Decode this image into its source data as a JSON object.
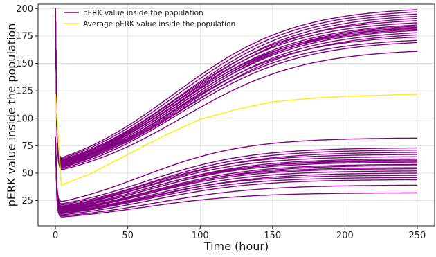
{
  "chart_data": {
    "type": "line",
    "xlabel": "Time (hour)",
    "ylabel": "pERK value inside the population",
    "xlim": [
      -12,
      262
    ],
    "ylim": [
      2,
      204
    ],
    "xticks": [
      0,
      50,
      100,
      150,
      200,
      250
    ],
    "yticks": [
      25,
      50,
      75,
      100,
      125,
      150,
      175,
      200
    ],
    "grid": true,
    "legend_position": "top-left",
    "colors": {
      "population": "#800080",
      "average": "#f7f023"
    },
    "legend": [
      {
        "label": "pERK value inside the population",
        "color": "#800080"
      },
      {
        "label": "Average pERK value inside the population",
        "color": "#f7f023"
      }
    ],
    "series": [
      {
        "name": "pERK value inside the population",
        "group": "high",
        "start": 200,
        "min_values": [
          64,
          63,
          62,
          61.5,
          61,
          60.5,
          60,
          59.5,
          59,
          58.5,
          58,
          57.5,
          57,
          56.5,
          56,
          55.5,
          55,
          54,
          53
        ],
        "final_values": [
          199,
          197,
          195,
          193,
          191,
          189,
          187,
          185,
          184,
          183,
          182,
          181,
          180,
          178,
          176,
          174,
          171,
          169,
          161
        ]
      },
      {
        "name": "pERK value inside the population",
        "group": "low",
        "start": 83,
        "min_values": [
          24,
          22,
          21,
          20,
          19.5,
          19,
          18.5,
          18,
          17.5,
          17,
          16.5,
          16,
          15.5,
          15,
          14.5,
          14,
          13.5,
          13,
          12,
          11,
          10
        ],
        "final_values": [
          82,
          73,
          71,
          69,
          67,
          65,
          63,
          62,
          61,
          60,
          58,
          57,
          55,
          54,
          52,
          50,
          48,
          46,
          44,
          39,
          32
        ]
      },
      {
        "name": "Average pERK value inside the population",
        "group": "average",
        "x": [
          0,
          4,
          25,
          50,
          75,
          100,
          125,
          150,
          175,
          200,
          225,
          250
        ],
        "y": [
          122,
          39,
          50,
          67,
          84,
          99,
          108,
          115,
          118,
          120,
          121,
          122
        ]
      }
    ]
  }
}
